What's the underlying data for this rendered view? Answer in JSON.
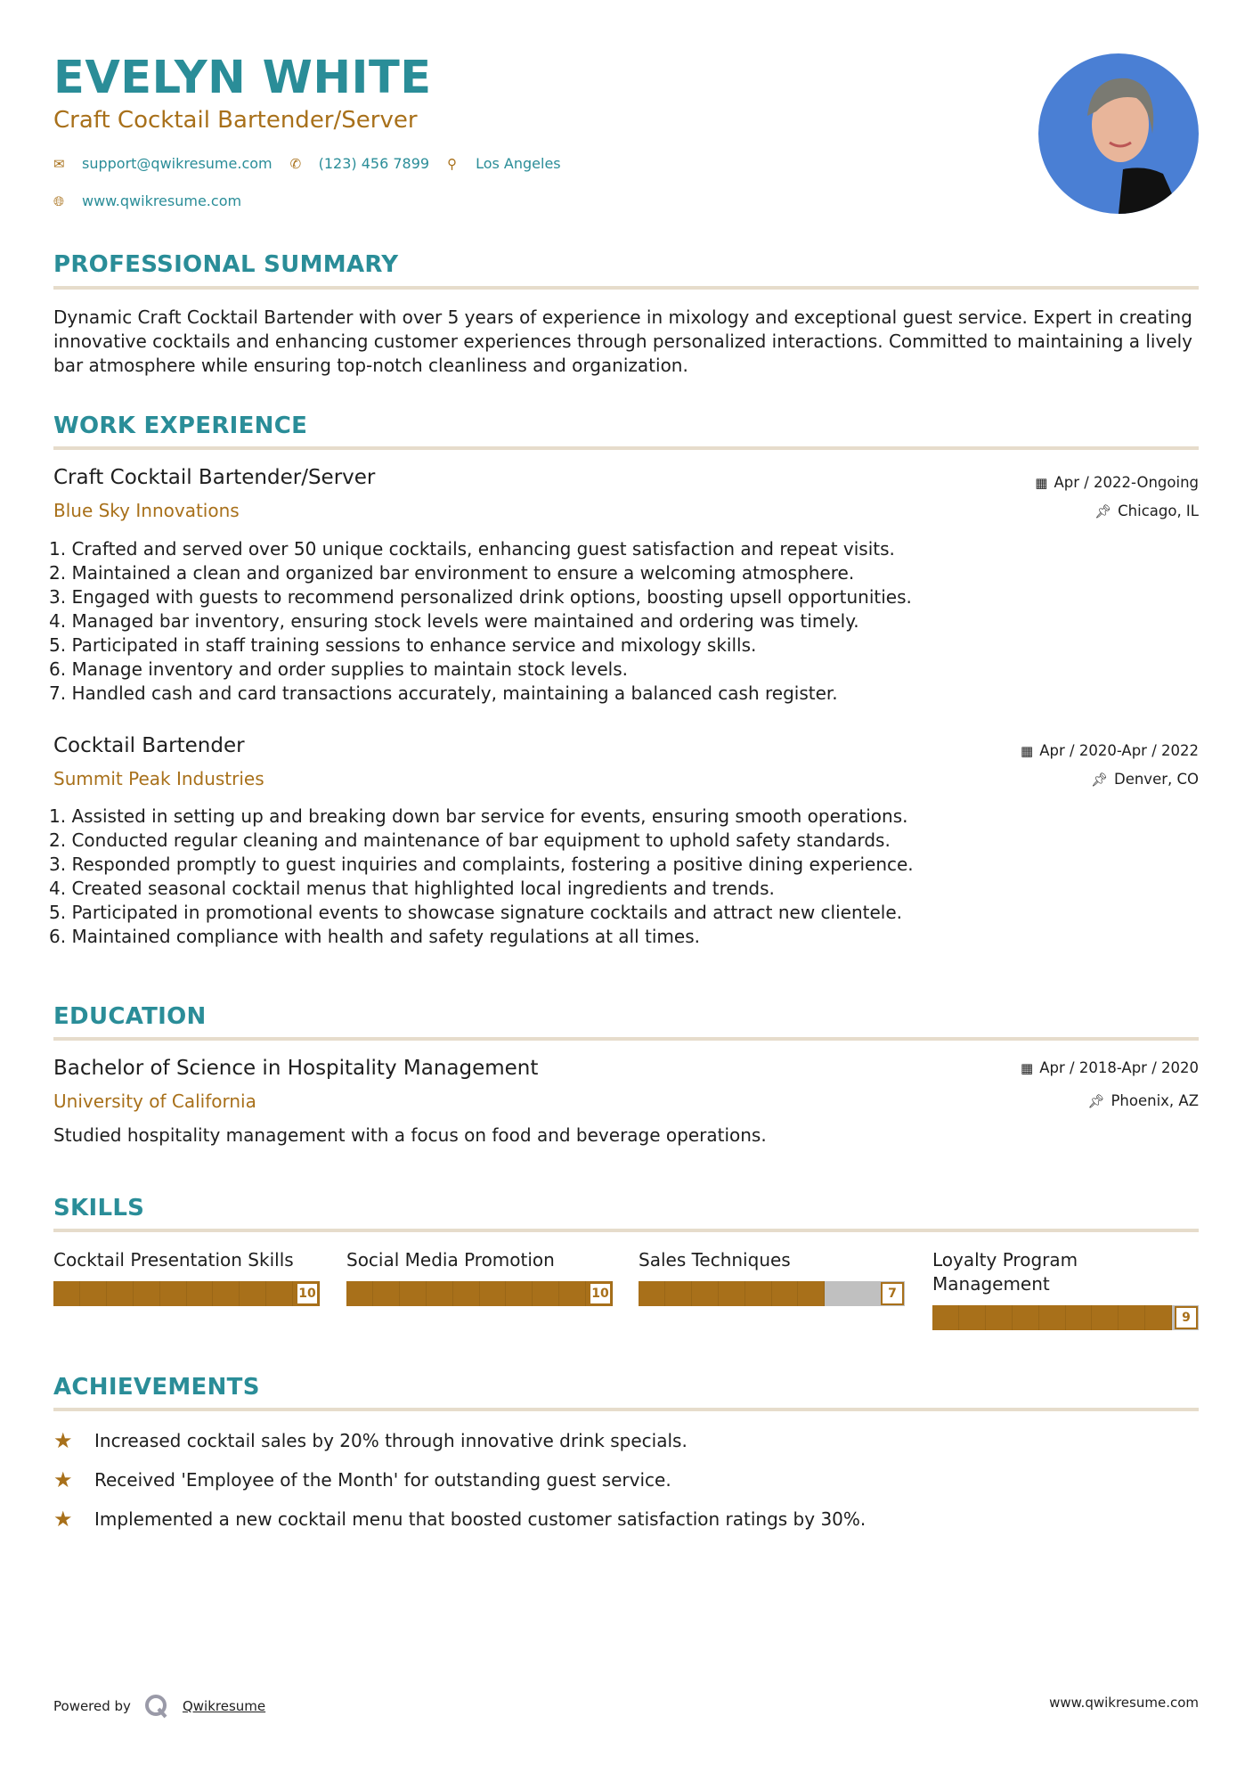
{
  "header": {
    "name": "EVELYN WHITE",
    "role": "Craft Cocktail Bartender/Server",
    "email": "support@qwikresume.com",
    "phone": "(123) 456 7899",
    "location": "Los Angeles",
    "website": "www.qwikresume.com"
  },
  "summary": {
    "heading": "PROFESSIONAL SUMMARY",
    "text": "Dynamic Craft Cocktail Bartender with over 5 years of experience in mixology and exceptional guest service. Expert in creating innovative cocktails and enhancing customer experiences through personalized interactions. Committed to maintaining a lively bar atmosphere while ensuring top-notch cleanliness and organization."
  },
  "experience": {
    "heading": "WORK EXPERIENCE",
    "jobs": [
      {
        "title": "Craft Cocktail Bartender/Server",
        "company": "Blue Sky Innovations",
        "dates": "Apr / 2022-Ongoing",
        "location": "Chicago, IL",
        "bullets": [
          "1. Crafted and served over 50 unique cocktails, enhancing guest satisfaction and repeat visits.",
          "2. Maintained a clean and organized bar environment to ensure a welcoming atmosphere.",
          "3. Engaged with guests to recommend personalized drink options, boosting upsell opportunities.",
          "4. Managed bar inventory, ensuring stock levels were maintained and ordering was timely.",
          "5. Participated in staff training sessions to enhance service and mixology skills.",
          "6. Manage inventory and order supplies to maintain stock levels.",
          "7. Handled cash and card transactions accurately, maintaining a balanced cash register."
        ]
      },
      {
        "title": "Cocktail Bartender",
        "company": "Summit Peak Industries",
        "dates": "Apr / 2020-Apr / 2022",
        "location": "Denver, CO",
        "bullets": [
          "1. Assisted in setting up and breaking down bar service for events, ensuring smooth operations.",
          "2. Conducted regular cleaning and maintenance of bar equipment to uphold safety standards.",
          "3. Responded promptly to guest inquiries and complaints, fostering a positive dining experience.",
          "4. Created seasonal cocktail menus that highlighted local ingredients and trends.",
          "5. Participated in promotional events to showcase signature cocktails and attract new clientele.",
          "6. Maintained compliance with health and safety regulations at all times."
        ]
      }
    ]
  },
  "education": {
    "heading": "EDUCATION",
    "degree": "Bachelor of Science in Hospitality Management",
    "school": "University of California",
    "dates": "Apr / 2018-Apr / 2020",
    "location": "Phoenix, AZ",
    "description": "Studied hospitality management with a focus on food and beverage operations."
  },
  "skills": {
    "heading": "SKILLS",
    "items": [
      {
        "name": "Cocktail Presentation Skills",
        "level": 10,
        "max": 10
      },
      {
        "name": "Social Media Promotion",
        "level": 10,
        "max": 10
      },
      {
        "name": "Sales Techniques",
        "level": 7,
        "max": 10
      },
      {
        "name": "Loyalty Program Management",
        "level": 9,
        "max": 10
      }
    ]
  },
  "achievements": {
    "heading": "ACHIEVEMENTS",
    "items": [
      "Increased cocktail sales by 20% through innovative drink specials.",
      "Received 'Employee of the Month' for outstanding guest service.",
      "Implemented a new cocktail menu that boosted customer satisfaction ratings by 30%."
    ]
  },
  "footer": {
    "powered_by": "Powered by",
    "brand": "Qwikresume",
    "site": "www.qwikresume.com"
  },
  "colors": {
    "accent": "#2a8d98",
    "secondary": "#a8701a",
    "rule": "#e6dccb"
  }
}
